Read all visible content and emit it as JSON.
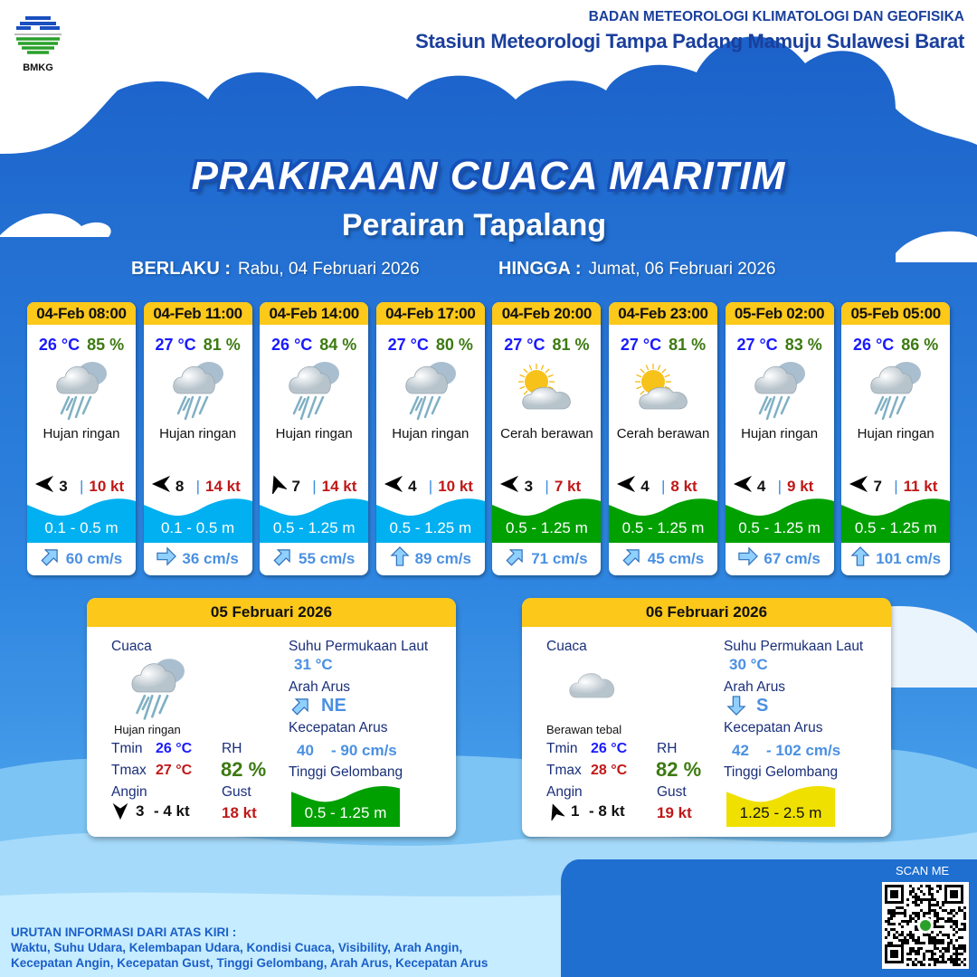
{
  "header": {
    "org": "BADAN METEOROLOGI KLIMATOLOGI DAN GEOFISIKA",
    "station": "Stasiun Meteorologi Tampa Padang Mamuju Sulawesi Barat",
    "logo_text": "BMKG"
  },
  "title": "PRAKIRAAN CUACA MARITIM",
  "subtitle": "Perairan Tapalang",
  "validity": {
    "from_label": "BERLAKU :",
    "from": "Rabu, 04 Februari 2026",
    "to_label": "HINGGA :",
    "to": "Jumat, 06 Februari 2026"
  },
  "colors": {
    "wave_low": "#00b0f0",
    "wave_moderate": "#00a000",
    "wave_high": "#f0e000",
    "header_yellow": "#fcc81a",
    "temp": "#1a1aff",
    "humidity": "#3d7a12",
    "gust": "#c01818",
    "current": "#4a90e2"
  },
  "forecasts": [
    {
      "time": "04-Feb 08:00",
      "temp": "26 °C",
      "rh": "85 %",
      "icon": "rain-cloud-icon",
      "condition": "Hujan ringan",
      "wind_dir": "W",
      "wind_speed": "3",
      "gust": "10 kt",
      "wave": "0.1 - 0.5 m",
      "wave_level": "low",
      "current_dir": "NE",
      "current_speed": "60 cm/s"
    },
    {
      "time": "04-Feb 11:00",
      "temp": "27 °C",
      "rh": "81 %",
      "icon": "rain-cloud-icon",
      "condition": "Hujan ringan",
      "wind_dir": "W",
      "wind_speed": "8",
      "gust": "14 kt",
      "wave": "0.1 - 0.5 m",
      "wave_level": "low",
      "current_dir": "E",
      "current_speed": "36 cm/s"
    },
    {
      "time": "04-Feb 14:00",
      "temp": "26 °C",
      "rh": "84 %",
      "icon": "rain-cloud-icon",
      "condition": "Hujan ringan",
      "wind_dir": "NNW",
      "wind_speed": "7",
      "gust": "14 kt",
      "wave": "0.5 - 1.25 m",
      "wave_level": "low",
      "current_dir": "NE",
      "current_speed": "55 cm/s"
    },
    {
      "time": "04-Feb 17:00",
      "temp": "27 °C",
      "rh": "80 %",
      "icon": "rain-cloud-icon",
      "condition": "Hujan ringan",
      "wind_dir": "W",
      "wind_speed": "4",
      "gust": "10 kt",
      "wave": "0.5 - 1.25 m",
      "wave_level": "low",
      "current_dir": "N",
      "current_speed": "89 cm/s"
    },
    {
      "time": "04-Feb 20:00",
      "temp": "27 °C",
      "rh": "81 %",
      "icon": "partly-cloudy-icon",
      "condition": "Cerah berawan",
      "wind_dir": "W",
      "wind_speed": "3",
      "gust": "7 kt",
      "wave": "0.5 - 1.25 m",
      "wave_level": "moderate",
      "current_dir": "NE",
      "current_speed": "71 cm/s"
    },
    {
      "time": "04-Feb 23:00",
      "temp": "27 °C",
      "rh": "81 %",
      "icon": "partly-cloudy-icon",
      "condition": "Cerah berawan",
      "wind_dir": "W",
      "wind_speed": "4",
      "gust": "8 kt",
      "wave": "0.5 - 1.25 m",
      "wave_level": "moderate",
      "current_dir": "NE",
      "current_speed": "45 cm/s"
    },
    {
      "time": "05-Feb 02:00",
      "temp": "27 °C",
      "rh": "83 %",
      "icon": "rain-cloud-icon",
      "condition": "Hujan ringan",
      "wind_dir": "W",
      "wind_speed": "4",
      "gust": "9 kt",
      "wave": "0.5 - 1.25 m",
      "wave_level": "moderate",
      "current_dir": "E",
      "current_speed": "67 cm/s"
    },
    {
      "time": "05-Feb 05:00",
      "temp": "26 °C",
      "rh": "86 %",
      "icon": "rain-cloud-icon",
      "condition": "Hujan ringan",
      "wind_dir": "W",
      "wind_speed": "7",
      "gust": "11 kt",
      "wave": "0.5 - 1.25 m",
      "wave_level": "moderate",
      "current_dir": "N",
      "current_speed": "101 cm/s"
    }
  ],
  "labels": {
    "weather": "Cuaca",
    "tmin": "Tmin",
    "tmax": "Tmax",
    "wind": "Angin",
    "rh": "RH",
    "gust": "Gust",
    "sst": "Suhu Permukaan Laut",
    "current_dir": "Arah Arus",
    "current_speed": "Kecepatan Arus",
    "wave": "Tinggi Gelombang"
  },
  "daily": [
    {
      "date": "05 Februari 2026",
      "icon": "rain-cloud-icon",
      "condition": "Hujan ringan",
      "tmin": "26 °C",
      "tmax": "27 °C",
      "rh": "82 %",
      "wind_dir": "S",
      "wind_from": "3",
      "wind_to": "- 4 kt",
      "gust": "18 kt",
      "sst": "31 °C",
      "current_dir": "NE",
      "current_from": "40",
      "current_to": "- 90 cm/s",
      "wave": "0.5 - 1.25 m",
      "wave_level": "moderate"
    },
    {
      "date": "06 Februari 2026",
      "icon": "thick-cloud-icon",
      "condition": "Berawan tebal",
      "tmin": "26 °C",
      "tmax": "28 °C",
      "rh": "82 %",
      "wind_dir": "NNW",
      "wind_from": "1",
      "wind_to": "- 8 kt",
      "gust": "19 kt",
      "sst": "30 °C",
      "current_dir": "S",
      "current_from": "42",
      "current_to": "- 102 cm/s",
      "wave": "1.25 - 2.5 m",
      "wave_level": "high"
    }
  ],
  "footer": {
    "heading": "URUTAN INFORMASI DARI ATAS KIRI :",
    "line1": "Waktu, Suhu Udara, Kelembapan Udara, Kondisi Cuaca, Visibility, Arah Angin,",
    "line2": "Kecepatan Angin, Kecepatan Gust, Tinggi Gelombang, Arah Arus, Kecepatan Arus",
    "scan": "SCAN ME"
  }
}
